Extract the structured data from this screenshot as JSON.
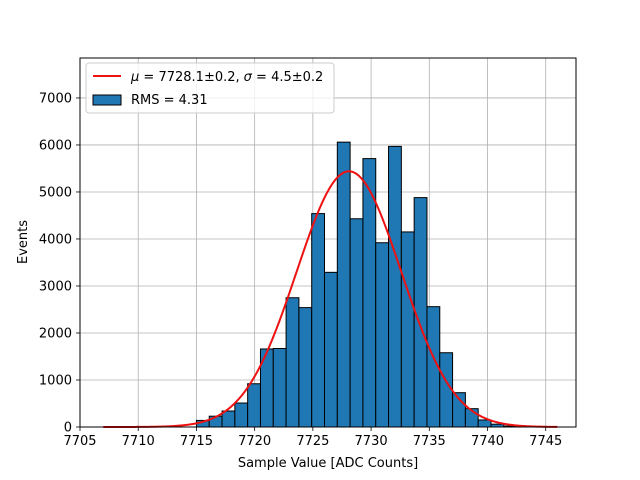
{
  "chart_data": {
    "type": "bar",
    "xlabel": "Sample Value [ADC Counts]",
    "ylabel": "Events",
    "xlim": [
      7705.0,
      7747.6
    ],
    "ylim": [
      0,
      7850
    ],
    "xticks": [
      7705,
      7710,
      7715,
      7720,
      7725,
      7730,
      7735,
      7740,
      7745
    ],
    "yticks": [
      0,
      1000,
      2000,
      3000,
      4000,
      5000,
      6000,
      7000
    ],
    "grid": true,
    "bin_width": 1.1,
    "bins": [
      {
        "x": 7715.0,
        "y": 140
      },
      {
        "x": 7716.1,
        "y": 230
      },
      {
        "x": 7717.2,
        "y": 340
      },
      {
        "x": 7718.3,
        "y": 510
      },
      {
        "x": 7719.4,
        "y": 920
      },
      {
        "x": 7720.5,
        "y": 1660
      },
      {
        "x": 7721.6,
        "y": 1670
      },
      {
        "x": 7722.7,
        "y": 2750
      },
      {
        "x": 7723.8,
        "y": 2540
      },
      {
        "x": 7724.9,
        "y": 4540
      },
      {
        "x": 7726.0,
        "y": 3290
      },
      {
        "x": 7727.1,
        "y": 6060
      },
      {
        "x": 7728.2,
        "y": 4430
      },
      {
        "x": 7729.3,
        "y": 5710
      },
      {
        "x": 7730.4,
        "y": 3920
      },
      {
        "x": 7731.5,
        "y": 5970
      },
      {
        "x": 7732.6,
        "y": 4150
      },
      {
        "x": 7733.7,
        "y": 4880
      },
      {
        "x": 7734.8,
        "y": 2560
      },
      {
        "x": 7735.9,
        "y": 1580
      },
      {
        "x": 7737.0,
        "y": 730
      },
      {
        "x": 7738.1,
        "y": 390
      },
      {
        "x": 7739.2,
        "y": 150
      },
      {
        "x": 7740.3,
        "y": 60
      },
      {
        "x": 7741.4,
        "y": 20
      }
    ],
    "fit": {
      "mu": 7728.1,
      "sigma": 4.5,
      "amplitude": 5440,
      "x_range": [
        7707.0,
        7746.0
      ],
      "color": "#ee1111"
    },
    "bar_color": "#1f77b4",
    "legend": {
      "placement": "top-left",
      "entries": [
        {
          "mu_symbol": "μ",
          "mu_value": "7728.1±0.2,",
          "sigma_symbol": "σ",
          "sigma_value": "4.5±0.2"
        },
        {
          "label": "RMS = 4.31"
        }
      ]
    }
  }
}
